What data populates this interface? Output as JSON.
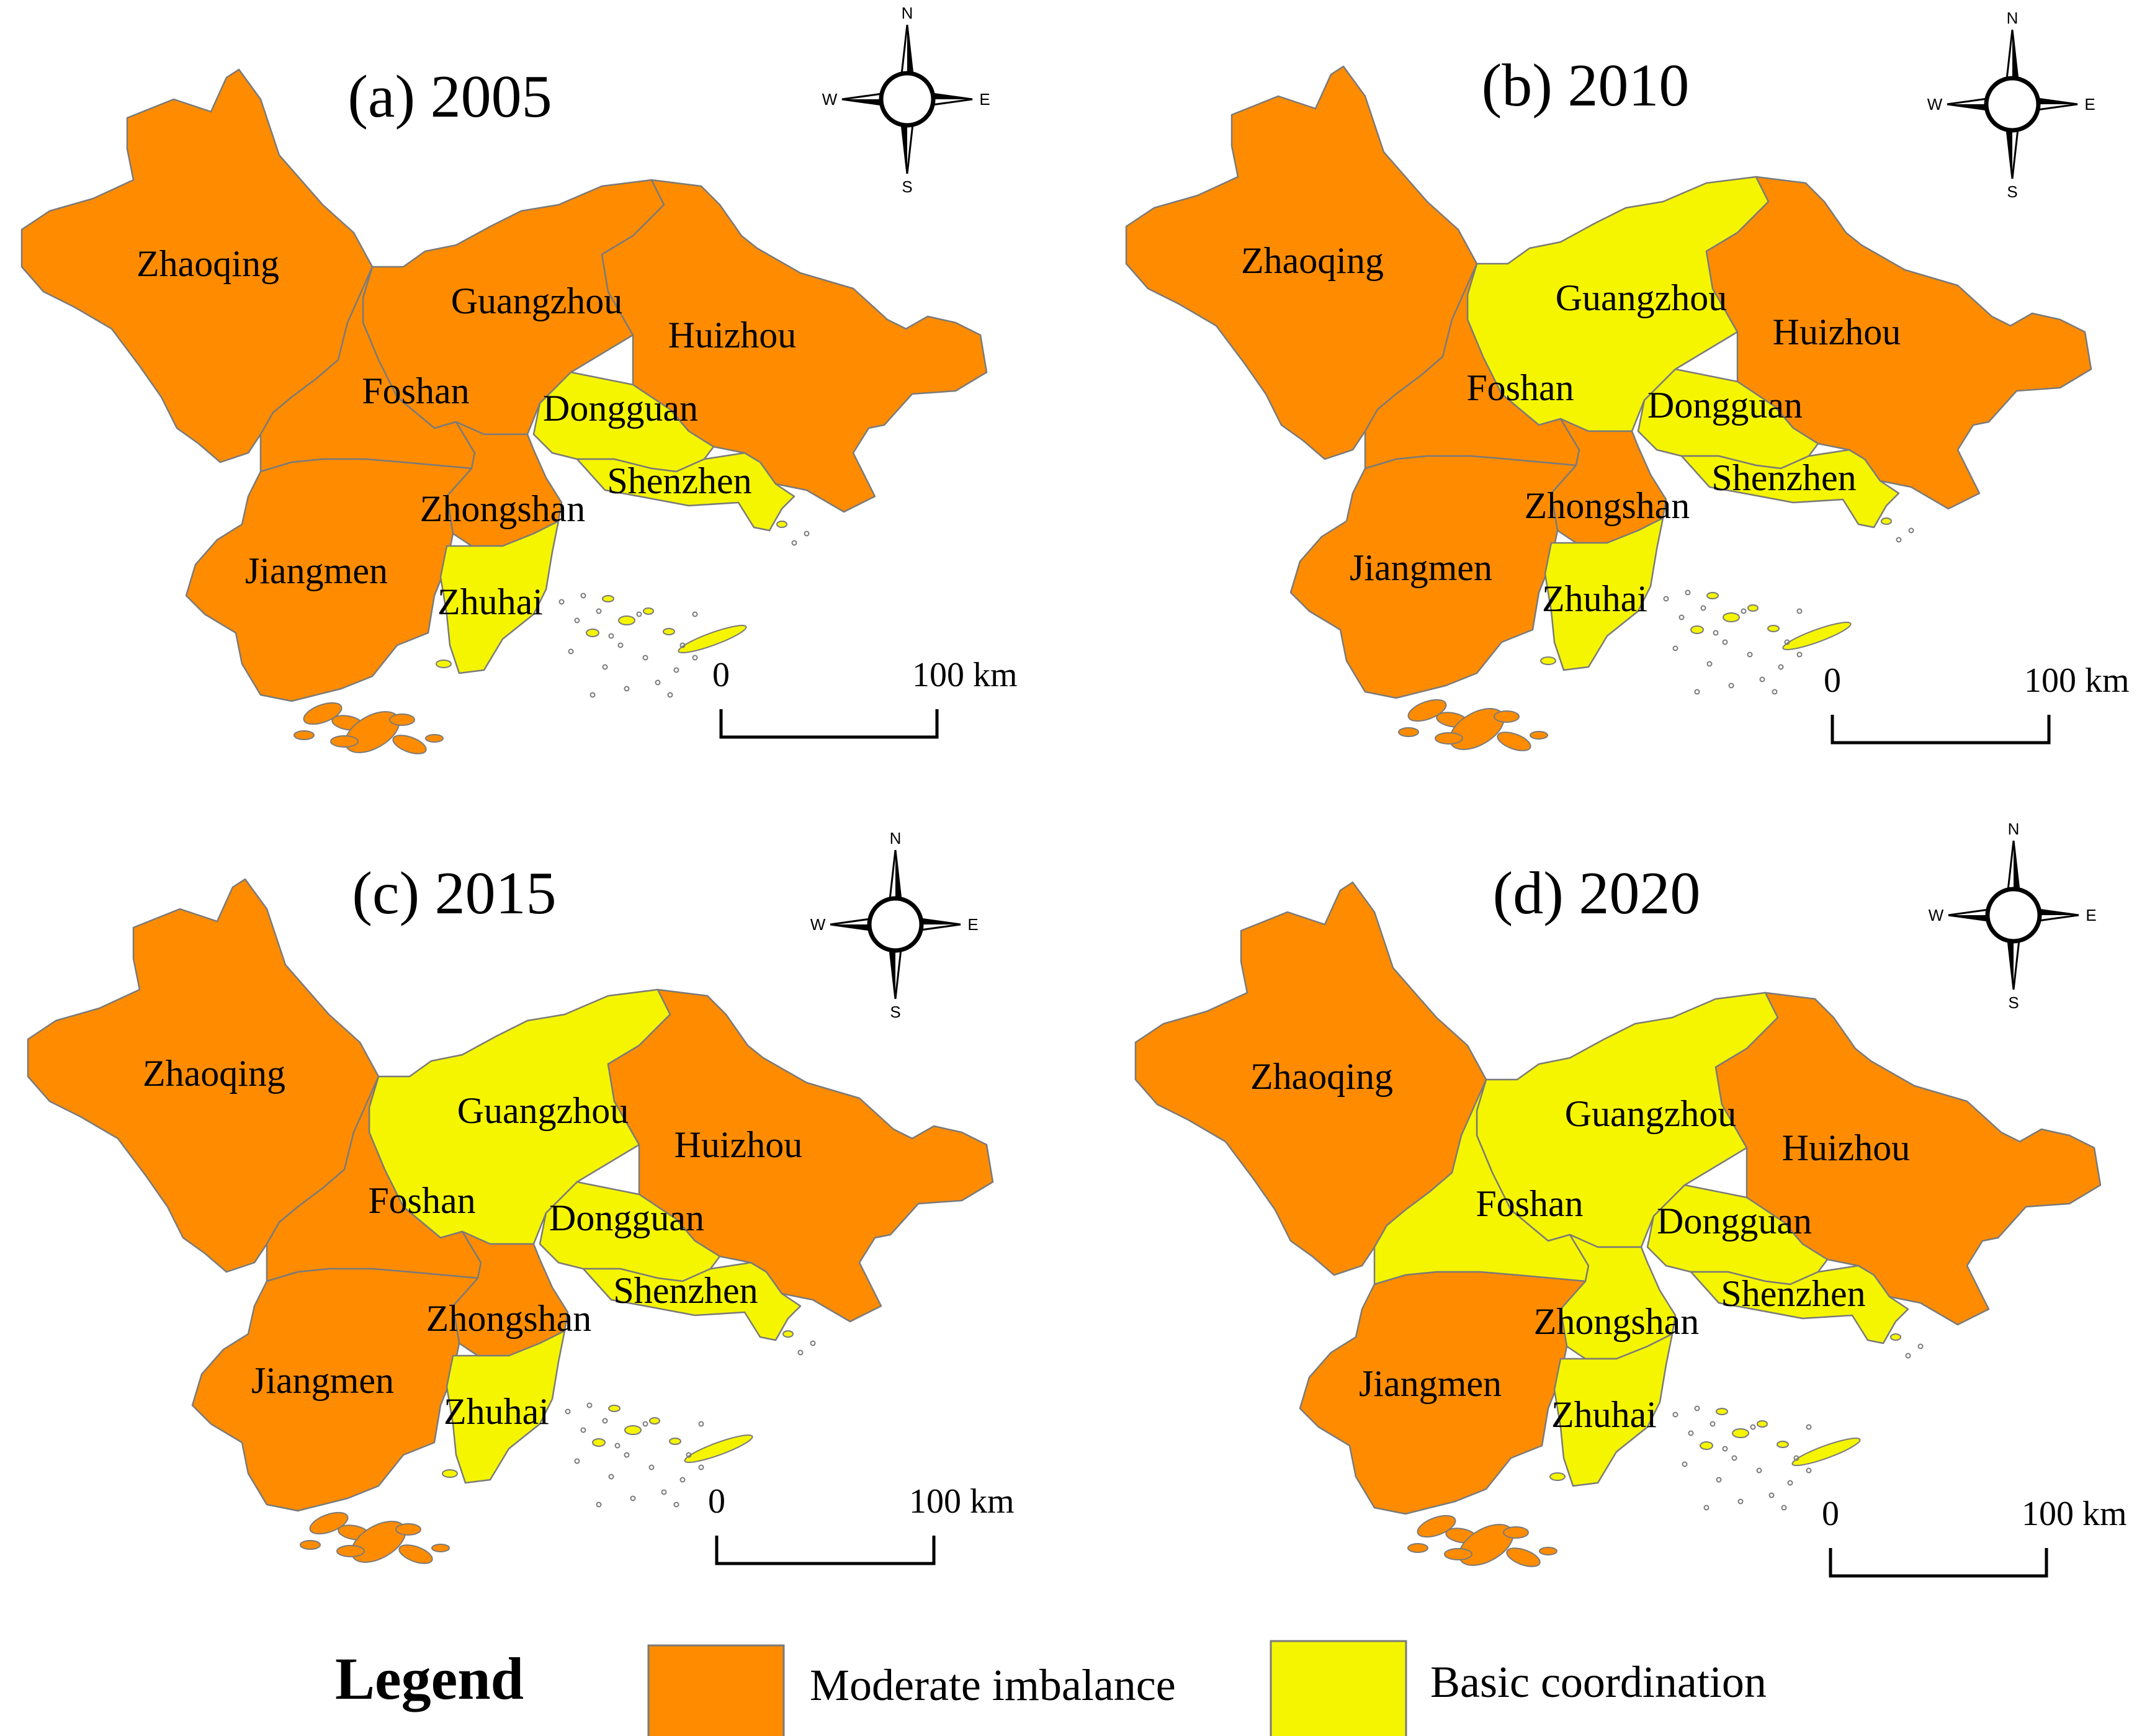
{
  "colors": {
    "moderate_imbalance": "#ff8c00",
    "basic_coordination": "#f5f500",
    "boundary": "#7a7a7a"
  },
  "compass": {
    "n": "N",
    "s": "S",
    "e": "E",
    "w": "W"
  },
  "scale": {
    "start": "0",
    "end": "100 km"
  },
  "city_names": {
    "zhaoqing": "Zhaoqing",
    "guangzhou": "Guangzhou",
    "huizhou": "Huizhou",
    "foshan": "Foshan",
    "dongguan": "Dongguan",
    "shenzhen": "Shenzhen",
    "zhongshan": "Zhongshan",
    "jiangmen": "Jiangmen",
    "zhuhai": "Zhuhai"
  },
  "panels": [
    {
      "title": "(a) 2005",
      "classes": {
        "zhaoqing": "moderate_imbalance",
        "guangzhou": "moderate_imbalance",
        "huizhou": "moderate_imbalance",
        "foshan": "moderate_imbalance",
        "dongguan": "basic_coordination",
        "shenzhen": "basic_coordination",
        "zhongshan": "moderate_imbalance",
        "jiangmen": "moderate_imbalance",
        "zhuhai": "basic_coordination"
      }
    },
    {
      "title": "(b) 2010",
      "classes": {
        "zhaoqing": "moderate_imbalance",
        "guangzhou": "basic_coordination",
        "huizhou": "moderate_imbalance",
        "foshan": "moderate_imbalance",
        "dongguan": "basic_coordination",
        "shenzhen": "basic_coordination",
        "zhongshan": "moderate_imbalance",
        "jiangmen": "moderate_imbalance",
        "zhuhai": "basic_coordination"
      }
    },
    {
      "title": "(c) 2015",
      "classes": {
        "zhaoqing": "moderate_imbalance",
        "guangzhou": "basic_coordination",
        "huizhou": "moderate_imbalance",
        "foshan": "moderate_imbalance",
        "dongguan": "basic_coordination",
        "shenzhen": "basic_coordination",
        "zhongshan": "moderate_imbalance",
        "jiangmen": "moderate_imbalance",
        "zhuhai": "basic_coordination"
      }
    },
    {
      "title": "(d) 2020",
      "classes": {
        "zhaoqing": "moderate_imbalance",
        "guangzhou": "basic_coordination",
        "huizhou": "moderate_imbalance",
        "foshan": "basic_coordination",
        "dongguan": "basic_coordination",
        "shenzhen": "basic_coordination",
        "zhongshan": "basic_coordination",
        "jiangmen": "moderate_imbalance",
        "zhuhai": "basic_coordination"
      }
    }
  ],
  "legend": {
    "title": "Legend",
    "items": [
      {
        "label": "Moderate imbalance",
        "class": "moderate_imbalance"
      },
      {
        "label": "Basic coordination",
        "class": "basic_coordination"
      }
    ]
  }
}
